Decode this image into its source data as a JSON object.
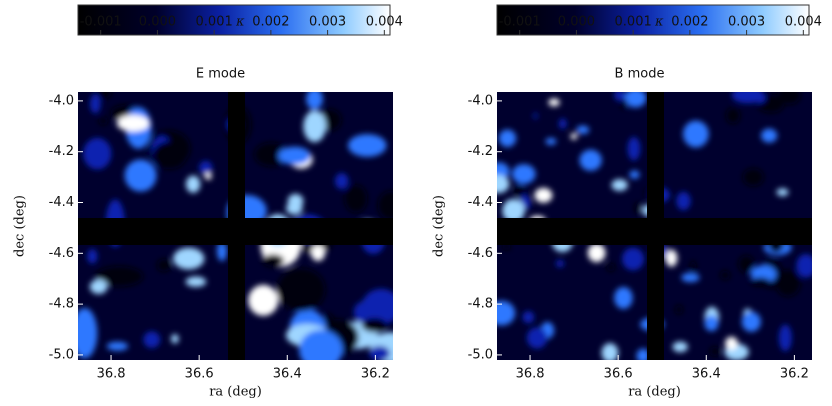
{
  "chart_data": [
    {
      "type": "image",
      "title": "E mode",
      "xlabel": "ra (deg)",
      "ylabel": "dec (deg)",
      "xlim": [
        36.875,
        36.16
      ],
      "xticks": [
        36.8,
        36.6,
        36.4,
        36.2
      ],
      "ylim": [
        -5.02,
        -3.965
      ],
      "yticks": [
        {
          "value": -4,
          "label": "-4.0"
        },
        -4.2,
        -4.4,
        -4.6,
        -4.8,
        {
          "value": -5,
          "label": "-5.0"
        }
      ],
      "colorbar": {
        "label": "κ",
        "clim": [
          -0.0014,
          0.0041
        ],
        "ticks": [
          {
            "value": -0.001,
            "label": "-0.001"
          },
          {
            "value": 0,
            "label": "0.000"
          },
          0.001,
          0.002,
          0.003,
          0.004
        ]
      }
    },
    {
      "type": "image",
      "title": "B mode",
      "xlabel": "ra (deg)",
      "ylabel": "dec (deg)",
      "xlim": [
        36.875,
        36.16
      ],
      "xticks": [
        36.8,
        36.6,
        36.4,
        36.2
      ],
      "ylim": [
        -5.02,
        -3.965
      ],
      "yticks": [
        {
          "value": -4,
          "label": "-4.0"
        },
        -4.2,
        -4.4,
        -4.6,
        -4.8,
        {
          "value": -5,
          "label": "-5.0"
        }
      ],
      "colorbar": {
        "label": "κ",
        "clim": [
          -0.0014,
          0.0041
        ],
        "ticks": [
          {
            "value": -0.001,
            "label": "-0.001"
          },
          {
            "value": 0,
            "label": "0.000"
          },
          0.001,
          0.002,
          0.003,
          0.004
        ]
      }
    }
  ]
}
